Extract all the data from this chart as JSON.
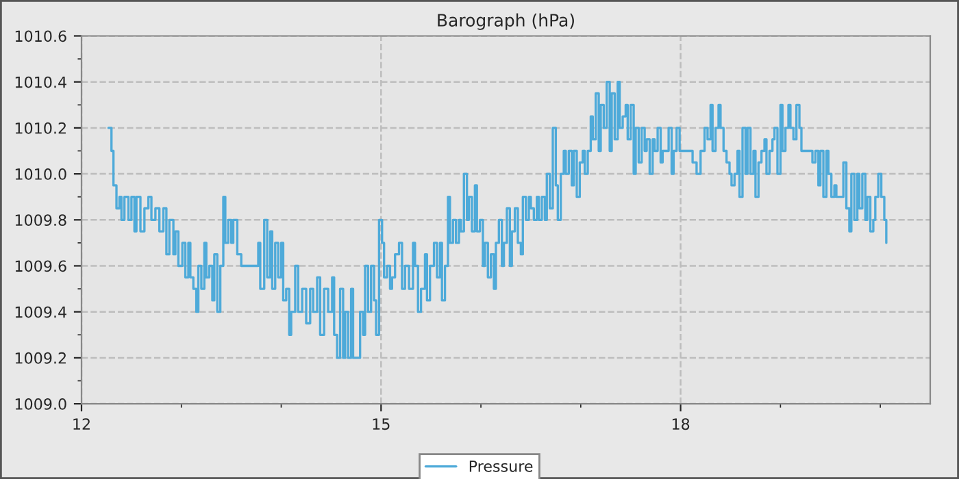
{
  "chart_data": {
    "type": "step",
    "title": "Barograph (hPa)",
    "xlim": [
      12,
      20.5
    ],
    "xticks": [
      12,
      {
        "value": 13,
        "label": null
      },
      {
        "value": 14,
        "label": null
      },
      15,
      {
        "value": 16,
        "label": null
      },
      {
        "value": 17,
        "label": null
      },
      18,
      {
        "value": 19,
        "label": null
      },
      {
        "value": 20,
        "label": null
      }
    ],
    "ylim": [
      1009.0,
      1010.6
    ],
    "yticks": [
      {
        "value": 1009.0,
        "label": "1009.0"
      },
      {
        "value": 1009.1,
        "label": null
      },
      {
        "value": 1009.2,
        "label": "1009.2"
      },
      {
        "value": 1009.3,
        "label": null
      },
      {
        "value": 1009.4,
        "label": "1009.4"
      },
      {
        "value": 1009.5,
        "label": null
      },
      {
        "value": 1009.6,
        "label": "1009.6"
      },
      {
        "value": 1009.7,
        "label": null
      },
      {
        "value": 1009.8,
        "label": "1009.8"
      },
      {
        "value": 1009.9,
        "label": null
      },
      {
        "value": 1010.0,
        "label": "1010.0"
      },
      {
        "value": 1010.1,
        "label": null
      },
      {
        "value": 1010.2,
        "label": "1010.2"
      },
      {
        "value": 1010.3,
        "label": null
      },
      {
        "value": 1010.4,
        "label": "1010.4"
      },
      {
        "value": 1010.5,
        "label": null
      },
      {
        "value": 1010.6,
        "label": "1010.6"
      }
    ],
    "grid": true,
    "legend": "bottom",
    "series": [
      {
        "name": "Pressure",
        "color": "#4eaad9",
        "x": [
          12.27,
          12.3,
          12.32,
          12.35,
          12.38,
          12.4,
          12.43,
          12.47,
          12.5,
          12.53,
          12.55,
          12.59,
          12.63,
          12.67,
          12.7,
          12.74,
          12.78,
          12.82,
          12.85,
          12.88,
          12.92,
          12.94,
          12.97,
          13.01,
          13.04,
          13.07,
          13.09,
          13.12,
          13.15,
          13.17,
          13.2,
          13.23,
          13.25,
          13.28,
          13.31,
          13.33,
          13.36,
          13.39,
          13.42,
          13.44,
          13.47,
          13.5,
          13.52,
          13.56,
          13.6,
          13.7,
          13.77,
          13.79,
          13.83,
          13.86,
          13.89,
          13.91,
          13.94,
          13.97,
          14.0,
          14.02,
          14.05,
          14.08,
          14.1,
          14.14,
          14.17,
          14.21,
          14.25,
          14.29,
          14.32,
          14.36,
          14.39,
          14.43,
          14.47,
          14.51,
          14.53,
          14.56,
          14.59,
          14.62,
          14.64,
          14.67,
          14.7,
          14.72,
          14.76,
          14.79,
          14.82,
          14.84,
          14.87,
          14.9,
          14.93,
          14.95,
          14.98,
          15.01,
          15.03,
          15.06,
          15.09,
          15.11,
          15.14,
          15.18,
          15.21,
          15.24,
          15.28,
          15.32,
          15.34,
          15.37,
          15.4,
          15.44,
          15.46,
          15.49,
          15.53,
          15.56,
          15.59,
          15.61,
          15.64,
          15.67,
          15.69,
          15.72,
          15.75,
          15.78,
          15.8,
          15.83,
          15.86,
          15.88,
          15.91,
          15.94,
          15.96,
          15.99,
          16.02,
          16.04,
          16.07,
          16.1,
          16.13,
          16.15,
          16.18,
          16.21,
          16.23,
          16.26,
          16.29,
          16.31,
          16.34,
          16.37,
          16.4,
          16.42,
          16.45,
          16.48,
          16.5,
          16.53,
          16.56,
          16.58,
          16.61,
          16.64,
          16.66,
          16.69,
          16.72,
          16.75,
          16.77,
          16.8,
          16.83,
          16.85,
          16.88,
          16.91,
          16.93,
          16.96,
          16.99,
          17.02,
          17.04,
          17.07,
          17.1,
          17.12,
          17.15,
          17.18,
          17.2,
          17.23,
          17.26,
          17.29,
          17.31,
          17.34,
          17.37,
          17.39,
          17.42,
          17.45,
          17.47,
          17.5,
          17.53,
          17.55,
          17.58,
          17.61,
          17.64,
          17.66,
          17.69,
          17.72,
          17.74,
          17.77,
          17.8,
          17.82,
          17.85,
          17.88,
          17.91,
          17.93,
          17.96,
          17.99,
          18.04,
          18.08,
          18.12,
          18.16,
          18.2,
          18.24,
          18.27,
          18.3,
          18.32,
          18.35,
          18.38,
          18.4,
          18.43,
          18.46,
          18.49,
          18.51,
          18.54,
          18.57,
          18.59,
          18.62,
          18.65,
          18.67,
          18.7,
          18.73,
          18.75,
          18.78,
          18.81,
          18.84,
          18.86,
          18.89,
          18.92,
          18.94,
          18.97,
          19.0,
          19.02,
          19.05,
          19.08,
          19.1,
          19.13,
          19.16,
          19.19,
          19.21,
          19.29,
          19.32,
          19.35,
          19.38,
          19.4,
          19.43,
          19.46,
          19.48,
          19.51,
          19.54,
          19.56,
          19.6,
          19.63,
          19.66,
          19.69,
          19.71,
          19.74,
          19.77,
          19.79,
          19.82,
          19.85,
          19.87,
          19.9,
          19.93,
          19.95,
          19.98,
          20.01,
          20.04,
          20.06
        ],
        "values": [
          1010.2,
          1010.1,
          1009.95,
          1009.85,
          1009.9,
          1009.8,
          1009.9,
          1009.8,
          1009.9,
          1009.75,
          1009.9,
          1009.75,
          1009.85,
          1009.9,
          1009.8,
          1009.85,
          1009.75,
          1009.85,
          1009.65,
          1009.8,
          1009.65,
          1009.75,
          1009.6,
          1009.7,
          1009.55,
          1009.7,
          1009.55,
          1009.5,
          1009.4,
          1009.6,
          1009.5,
          1009.7,
          1009.55,
          1009.6,
          1009.45,
          1009.65,
          1009.4,
          1009.6,
          1009.9,
          1009.7,
          1009.8,
          1009.7,
          1009.8,
          1009.65,
          1009.6,
          1009.6,
          1009.7,
          1009.5,
          1009.8,
          1009.55,
          1009.75,
          1009.5,
          1009.7,
          1009.55,
          1009.7,
          1009.45,
          1009.5,
          1009.3,
          1009.4,
          1009.6,
          1009.4,
          1009.5,
          1009.35,
          1009.5,
          1009.4,
          1009.55,
          1009.3,
          1009.5,
          1009.4,
          1009.55,
          1009.3,
          1009.2,
          1009.5,
          1009.2,
          1009.4,
          1009.2,
          1009.5,
          1009.2,
          1009.2,
          1009.4,
          1009.3,
          1009.6,
          1009.4,
          1009.6,
          1009.45,
          1009.3,
          1009.8,
          1009.7,
          1009.55,
          1009.6,
          1009.5,
          1009.55,
          1009.65,
          1009.7,
          1009.5,
          1009.6,
          1009.5,
          1009.7,
          1009.6,
          1009.4,
          1009.5,
          1009.65,
          1009.45,
          1009.6,
          1009.7,
          1009.55,
          1009.7,
          1009.45,
          1009.6,
          1009.9,
          1009.7,
          1009.8,
          1009.7,
          1009.8,
          1009.75,
          1010.0,
          1009.8,
          1009.9,
          1009.75,
          1009.95,
          1009.75,
          1009.8,
          1009.6,
          1009.7,
          1009.55,
          1009.65,
          1009.5,
          1009.7,
          1009.8,
          1009.6,
          1009.7,
          1009.85,
          1009.6,
          1009.75,
          1009.85,
          1009.7,
          1009.65,
          1009.9,
          1009.8,
          1009.9,
          1009.85,
          1009.8,
          1009.9,
          1009.8,
          1009.9,
          1009.8,
          1010.0,
          1009.85,
          1010.2,
          1009.95,
          1009.8,
          1010.0,
          1010.1,
          1010.0,
          1010.1,
          1009.95,
          1010.1,
          1009.9,
          1010.05,
          1010.1,
          1010.0,
          1010.1,
          1010.25,
          1010.15,
          1010.35,
          1010.1,
          1010.3,
          1010.2,
          1010.4,
          1010.1,
          1010.35,
          1010.15,
          1010.4,
          1010.2,
          1010.25,
          1010.3,
          1010.15,
          1010.3,
          1010.0,
          1010.2,
          1010.05,
          1010.2,
          1010.1,
          1010.15,
          1010.0,
          1010.15,
          1010.1,
          1010.2,
          1010.05,
          1010.1,
          1010.1,
          1010.2,
          1010.0,
          1010.1,
          1010.2,
          1010.1,
          1010.1,
          1010.1,
          1010.05,
          1010.0,
          1010.1,
          1010.2,
          1010.15,
          1010.3,
          1010.1,
          1010.2,
          1010.3,
          1010.2,
          1010.1,
          1010.05,
          1010.0,
          1009.95,
          1010.0,
          1010.1,
          1009.9,
          1010.2,
          1010.0,
          1010.2,
          1010.0,
          1010.1,
          1009.9,
          1010.05,
          1010.1,
          1010.15,
          1010.0,
          1010.1,
          1010.15,
          1010.2,
          1010.0,
          1010.3,
          1010.1,
          1010.2,
          1010.3,
          1010.2,
          1010.15,
          1010.3,
          1010.2,
          1010.1,
          1010.1,
          1010.05,
          1010.1,
          1009.95,
          1010.1,
          1009.9,
          1010.1,
          1010.0,
          1009.9,
          1009.95,
          1009.9,
          1009.9,
          1010.05,
          1009.85,
          1009.75,
          1010.0,
          1009.8,
          1010.0,
          1009.85,
          1010.0,
          1009.8,
          1009.9,
          1009.75,
          1009.8,
          1009.9,
          1010.0,
          1009.9,
          1009.8,
          1009.7
        ]
      }
    ]
  }
}
